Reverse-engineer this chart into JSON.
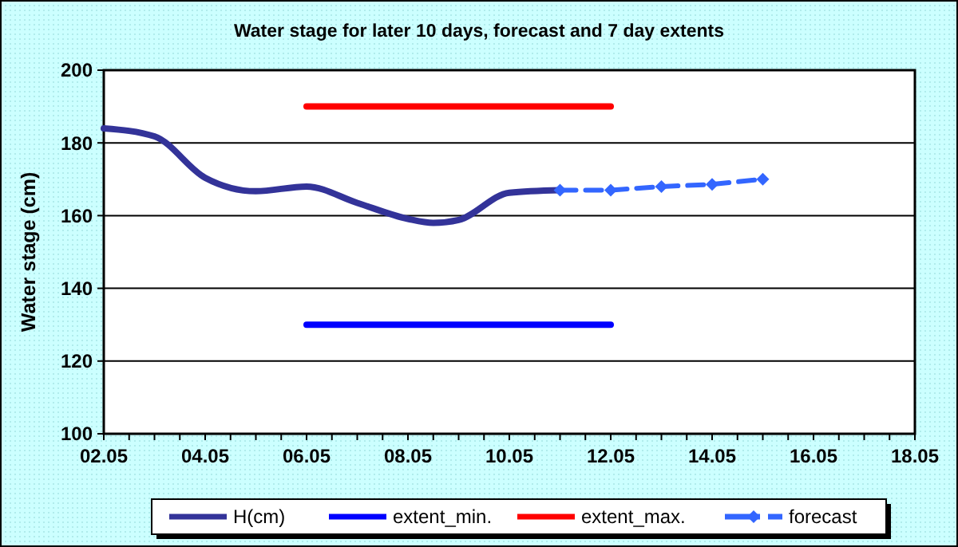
{
  "chart_data": {
    "type": "line",
    "title": "Water stage for later 10 days, forecast and 7 day extents",
    "ylabel": "Water stage (cm)",
    "xlim": [
      "--05-02",
      "--05-18"
    ],
    "xticks": [
      {
        "value": "--05-02",
        "label": "02.05"
      },
      {
        "value": "--05-02T12:00",
        "label": null
      },
      {
        "value": "--05-03",
        "label": null
      },
      {
        "value": "--05-03T12:00",
        "label": null
      },
      {
        "value": "--05-04",
        "label": "04.05"
      },
      {
        "value": "--05-04T12:00",
        "label": null
      },
      {
        "value": "--05-05",
        "label": null
      },
      {
        "value": "--05-05T12:00",
        "label": null
      },
      {
        "value": "--05-06",
        "label": "06.05"
      },
      {
        "value": "--05-06T12:00",
        "label": null
      },
      {
        "value": "--05-07",
        "label": null
      },
      {
        "value": "--05-07T12:00",
        "label": null
      },
      {
        "value": "--05-08",
        "label": "08.05"
      },
      {
        "value": "--05-08T12:00",
        "label": null
      },
      {
        "value": "--05-09",
        "label": null
      },
      {
        "value": "--05-09T12:00",
        "label": null
      },
      {
        "value": "--05-10",
        "label": "10.05"
      },
      {
        "value": "--05-10T12:00",
        "label": null
      },
      {
        "value": "--05-11",
        "label": null
      },
      {
        "value": "--05-11T12:00",
        "label": null
      },
      {
        "value": "--05-12",
        "label": "12.05"
      },
      {
        "value": "--05-12T12:00",
        "label": null
      },
      {
        "value": "--05-13",
        "label": null
      },
      {
        "value": "--05-13T12:00",
        "label": null
      },
      {
        "value": "--05-14",
        "label": "14.05"
      },
      {
        "value": "--05-14T12:00",
        "label": null
      },
      {
        "value": "--05-15",
        "label": null
      },
      {
        "value": "--05-15T12:00",
        "label": null
      },
      {
        "value": "--05-16",
        "label": "16.05"
      },
      {
        "value": "--05-16T12:00",
        "label": null
      },
      {
        "value": "--05-17",
        "label": null
      },
      {
        "value": "--05-17T12:00",
        "label": null
      },
      {
        "value": "--05-18",
        "label": "18.05"
      }
    ],
    "ylim": [
      100,
      200
    ],
    "yticks": [
      100,
      120,
      140,
      160,
      180,
      200
    ],
    "grid": "y",
    "legend": "bottom",
    "series": [
      {
        "name": "H(cm)",
        "color": "#333399",
        "x": [
          "--05-02",
          "--05-03",
          "--05-04",
          "--05-05",
          "--05-06",
          "--05-07",
          "--05-08",
          "--05-08T12:00",
          "--05-09",
          "--05-10",
          "--05-11"
        ],
        "values": [
          184,
          181.8,
          170.4,
          166.7,
          168,
          163.5,
          159.1,
          158,
          158.8,
          166.3,
          167
        ],
        "marker": "none",
        "line_style": "solid"
      },
      {
        "name": "extent_min.",
        "color": "#0000ff",
        "x": [
          "--05-06",
          "--05-12"
        ],
        "values": [
          130,
          130
        ],
        "marker": "none",
        "line_style": "solid"
      },
      {
        "name": "extent_max.",
        "color": "#ff0000",
        "x": [
          "--05-06",
          "--05-12"
        ],
        "values": [
          190,
          190
        ],
        "marker": "none",
        "line_style": "solid"
      },
      {
        "name": "forecast",
        "color": "#3366ff",
        "x": [
          "--05-11",
          "--05-12",
          "--05-13",
          "--05-14",
          "--05-15"
        ],
        "values": [
          167,
          167,
          168,
          168.6,
          170
        ],
        "marker": "diamond",
        "line_style": "dashed"
      }
    ]
  }
}
